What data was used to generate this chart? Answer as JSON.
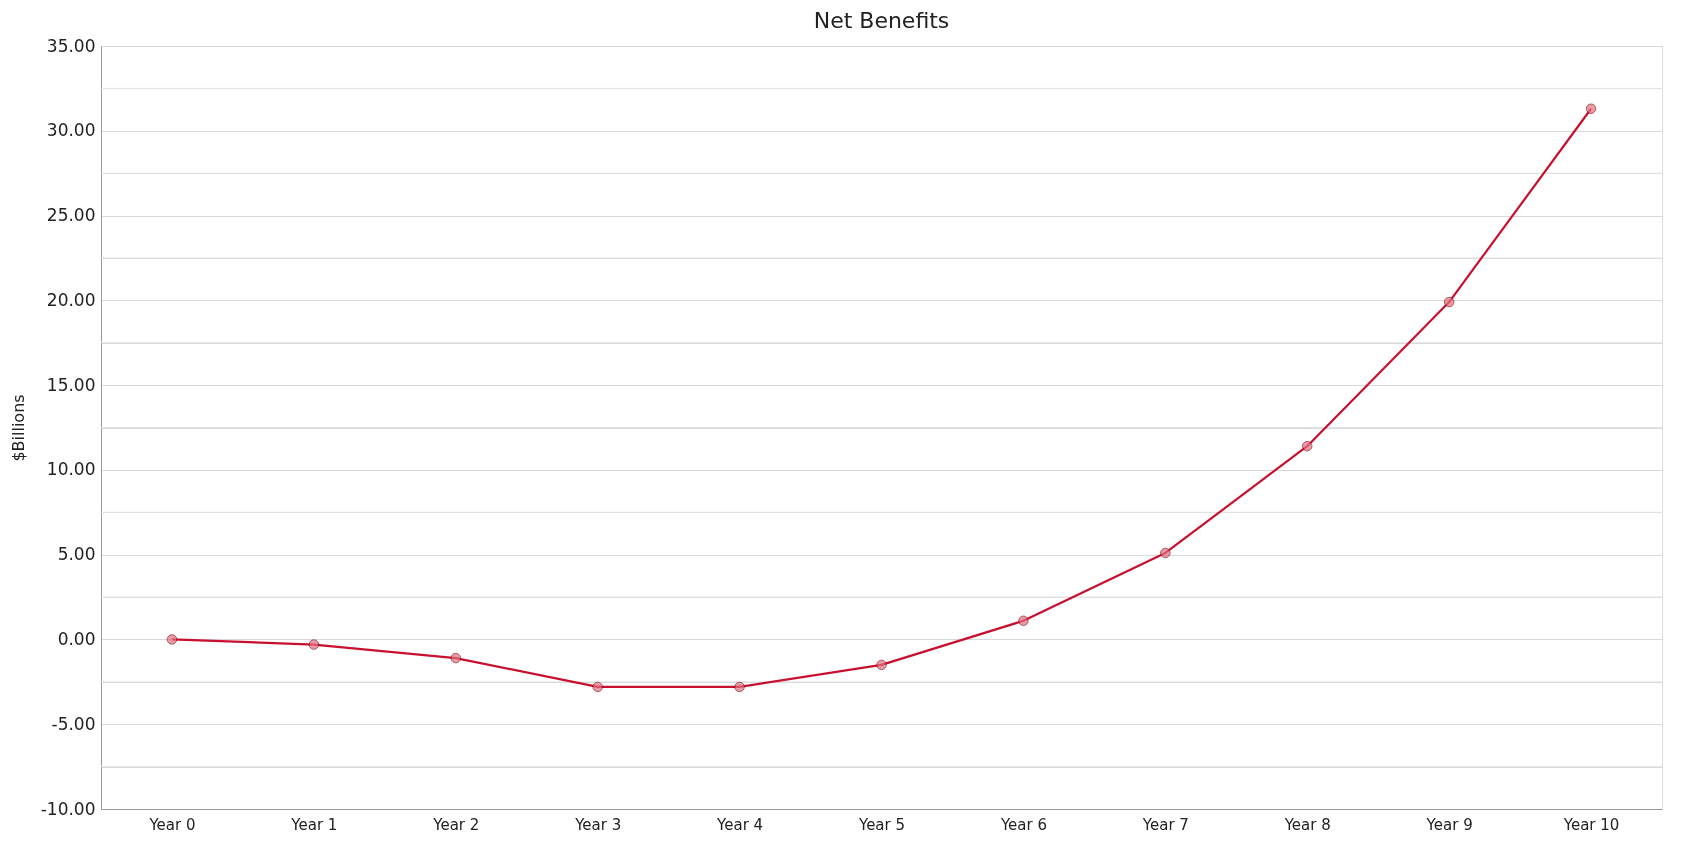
{
  "chart_data": {
    "type": "line",
    "title": "Net Benefits",
    "ylabel": "$Billions",
    "categories": [
      "Year 0",
      "Year 1",
      "Year 2",
      "Year 3",
      "Year 4",
      "Year 5",
      "Year 6",
      "Year 7",
      "Year 8",
      "Year 9",
      "Year 10"
    ],
    "series": [
      {
        "color": "#c8102e",
        "values": [
          0,
          -0.3,
          -1.1,
          -2.8,
          -2.8,
          -1.5,
          1.1,
          5.1,
          11.4,
          19.9,
          31.3
        ]
      }
    ],
    "ylim": [
      -10,
      35
    ],
    "yticks": [
      {
        "value": -10,
        "label": "-10.00"
      },
      {
        "value": -7.5,
        "label": null
      },
      {
        "value": -5,
        "label": "-5.00"
      },
      {
        "value": -2.5,
        "label": null
      },
      {
        "value": 0,
        "label": "0.00"
      },
      {
        "value": 2.5,
        "label": null
      },
      {
        "value": 5,
        "label": "5.00"
      },
      {
        "value": 7.5,
        "label": null
      },
      {
        "value": 10,
        "label": "10.00"
      },
      {
        "value": 12.5,
        "label": null
      },
      {
        "value": 15,
        "label": "15.00"
      },
      {
        "value": 17.5,
        "label": null
      },
      {
        "value": 20,
        "label": "20.00"
      },
      {
        "value": 22.5,
        "label": null
      },
      {
        "value": 25,
        "label": "25.00"
      },
      {
        "value": 27.5,
        "label": null
      },
      {
        "value": 30,
        "label": "30.00"
      },
      {
        "value": 32.5,
        "label": null
      },
      {
        "value": 35,
        "label": "35.00"
      }
    ],
    "grid": "y",
    "marker": "circle",
    "line_style": "solid"
  }
}
